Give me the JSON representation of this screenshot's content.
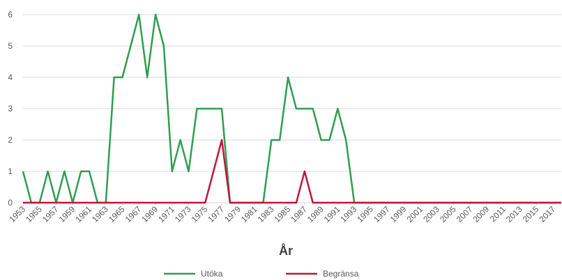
{
  "chart_data": {
    "type": "line",
    "x_label": "År",
    "x": [
      1953,
      1954,
      1955,
      1956,
      1957,
      1958,
      1959,
      1960,
      1961,
      1962,
      1963,
      1964,
      1965,
      1966,
      1967,
      1968,
      1969,
      1970,
      1971,
      1972,
      1973,
      1974,
      1975,
      1976,
      1977,
      1978,
      1979,
      1980,
      1981,
      1982,
      1983,
      1984,
      1985,
      1986,
      1987,
      1988,
      1989,
      1990,
      1991,
      1992,
      1993,
      1994,
      1995,
      1996,
      1997,
      1998,
      1999,
      2000,
      2001,
      2002,
      2003,
      2004,
      2005,
      2006,
      2007,
      2008,
      2009,
      2010,
      2011,
      2012,
      2013,
      2014,
      2015,
      2016,
      2017,
      2018
    ],
    "series": [
      {
        "name": "Utöka",
        "color": "#2e9e4f",
        "values": [
          1,
          0,
          0,
          1,
          0,
          1,
          0,
          1,
          1,
          0,
          0,
          4,
          4,
          5,
          6,
          4,
          6,
          5,
          1,
          2,
          1,
          3,
          3,
          3,
          3,
          0,
          0,
          0,
          0,
          0,
          2,
          2,
          4,
          3,
          3,
          3,
          2,
          2,
          3,
          2,
          0,
          0,
          0,
          0,
          0,
          0,
          0,
          0,
          0,
          0,
          0,
          0,
          0,
          0,
          0,
          0,
          0,
          0,
          0,
          0,
          0,
          0,
          0,
          0,
          0,
          0
        ]
      },
      {
        "name": "Begränsa",
        "color": "#c0163a",
        "values": [
          0,
          0,
          0,
          0,
          0,
          0,
          0,
          0,
          0,
          0,
          0,
          0,
          0,
          0,
          0,
          0,
          0,
          0,
          0,
          0,
          0,
          0,
          0,
          1,
          2,
          0,
          0,
          0,
          0,
          0,
          0,
          0,
          0,
          0,
          1,
          0,
          0,
          0,
          0,
          0,
          0,
          0,
          0,
          0,
          0,
          0,
          0,
          0,
          0,
          0,
          0,
          0,
          0,
          0,
          0,
          0,
          0,
          0,
          0,
          0,
          0,
          0,
          0,
          0,
          0,
          0
        ]
      }
    ],
    "xlim": [
      1953,
      2018
    ],
    "xticks": [
      1953,
      1955,
      1957,
      1959,
      1961,
      1963,
      1965,
      1967,
      1969,
      1971,
      1973,
      1975,
      1977,
      1979,
      1981,
      1983,
      1985,
      1987,
      1989,
      1991,
      1993,
      1995,
      1997,
      1999,
      2001,
      2003,
      2005,
      2007,
      2009,
      2011,
      2013,
      2015,
      2017
    ],
    "ylim": [
      0,
      6
    ],
    "yticks": [
      0,
      1,
      2,
      3,
      4,
      5,
      6
    ],
    "grid": true
  }
}
